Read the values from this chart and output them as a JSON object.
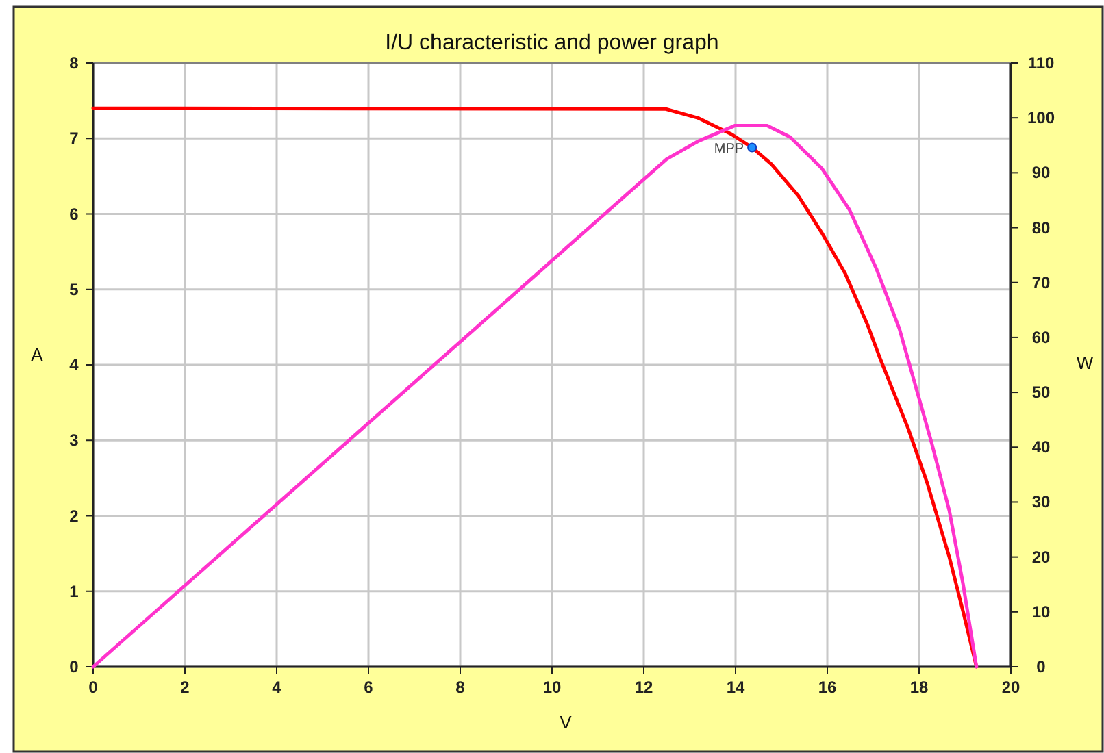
{
  "chart_data": {
    "type": "line",
    "title": "I/U characteristic and power graph",
    "xlabel": "V",
    "ylabel": "A",
    "y2label": "W",
    "xlim": [
      0,
      20
    ],
    "xticks": [
      0,
      2,
      4,
      6,
      8,
      10,
      12,
      14,
      16,
      18,
      20
    ],
    "ylim": [
      0,
      8
    ],
    "yticks": [
      0,
      1,
      2,
      3,
      4,
      5,
      6,
      7,
      8
    ],
    "y2lim": [
      0,
      110
    ],
    "y2ticks": [
      0,
      10,
      20,
      30,
      40,
      50,
      60,
      70,
      80,
      90,
      100,
      110
    ],
    "grid": true,
    "marker": "none",
    "line_style": "solid",
    "series": [
      {
        "color": "#ff0000",
        "x": [
          0,
          12.48,
          13.19,
          13.9,
          14.36,
          14.78,
          15.37,
          15.88,
          16.39,
          16.87,
          17.16,
          17.76,
          18.18,
          18.66,
          18.96,
          19.25
        ],
        "values": [
          7.4,
          7.39,
          7.27,
          7.06,
          6.88,
          6.66,
          6.24,
          5.75,
          5.21,
          4.54,
          4.07,
          3.16,
          2.43,
          1.45,
          0.73,
          0
        ]
      },
      {
        "axis": "y2",
        "color": "#ff33cc",
        "x": [
          0,
          12.5,
          13.2,
          13.99,
          14.69,
          15.19,
          15.88,
          16.48,
          17.07,
          17.57,
          18.27,
          18.66,
          18.96,
          19.25
        ],
        "values": [
          0,
          92.5,
          95.8,
          98.6,
          98.6,
          96.5,
          90.8,
          83.3,
          72.5,
          61.6,
          40.9,
          28.4,
          15,
          0
        ]
      },
      {
        "type": "scatter",
        "name": "MPP",
        "color": "#1e90ff",
        "marker": "circle",
        "x": [
          14.36
        ],
        "values": [
          6.88
        ]
      }
    ]
  }
}
